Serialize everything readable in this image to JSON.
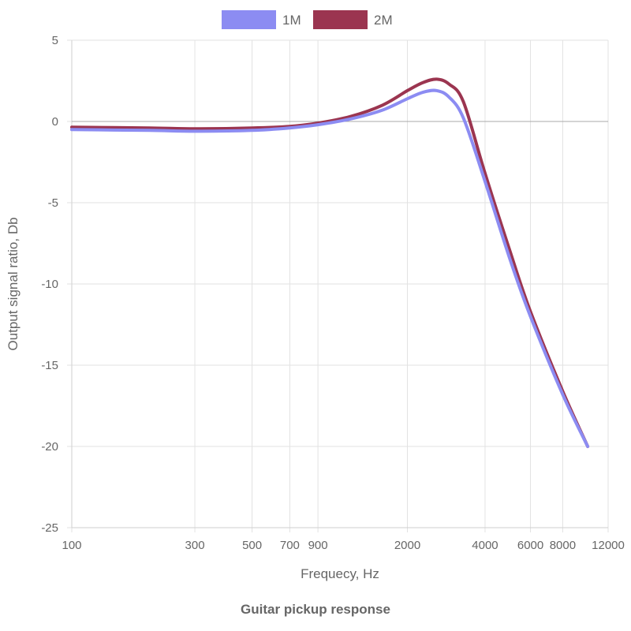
{
  "chart_data": {
    "type": "line",
    "title": "Guitar pickup response",
    "xlabel": "Frequecy, Hz",
    "ylabel": "Output signal ratio, Db",
    "x_scale": "log",
    "xlim": [
      100,
      12000
    ],
    "ylim": [
      -25,
      5
    ],
    "x_ticks": [
      100,
      300,
      500,
      700,
      900,
      2000,
      4000,
      6000,
      8000,
      12000
    ],
    "y_ticks": [
      5,
      0,
      -5,
      -10,
      -15,
      -20,
      -25
    ],
    "grid": true,
    "legend_position": "top-center",
    "series": [
      {
        "name": "1M",
        "color": "#8c8cf2",
        "x": [
          100,
          200,
          300,
          500,
          700,
          900,
          1200,
          1600,
          2000,
          2300,
          2600,
          2900,
          3300,
          4000,
          5000,
          6000,
          8000,
          10000
        ],
        "y": [
          -0.5,
          -0.55,
          -0.6,
          -0.55,
          -0.4,
          -0.2,
          0.15,
          0.7,
          1.4,
          1.8,
          1.9,
          1.5,
          0.2,
          -3.7,
          -8.5,
          -12.0,
          -16.8,
          -20.0
        ]
      },
      {
        "name": "2M",
        "color": "#9b3550",
        "x": [
          100,
          200,
          300,
          500,
          700,
          900,
          1200,
          1600,
          2000,
          2300,
          2600,
          2900,
          3300,
          4000,
          5000,
          6000,
          8000,
          10000
        ],
        "y": [
          -0.35,
          -0.4,
          -0.45,
          -0.4,
          -0.3,
          -0.1,
          0.3,
          1.0,
          1.9,
          2.4,
          2.6,
          2.3,
          1.2,
          -3.2,
          -8.0,
          -11.7,
          -16.6,
          -20.0
        ]
      }
    ]
  }
}
